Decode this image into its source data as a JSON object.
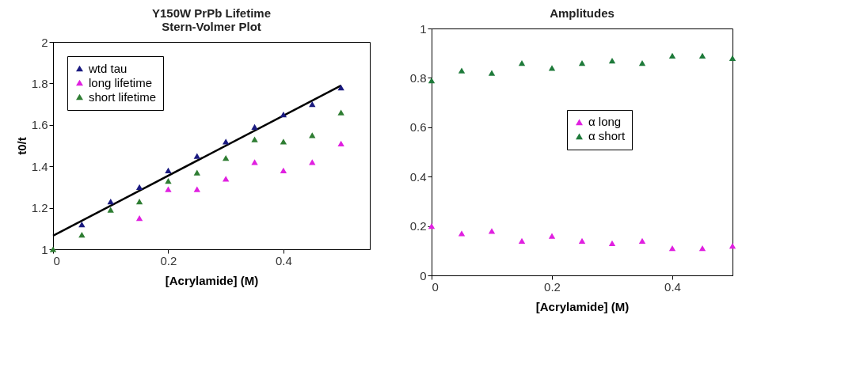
{
  "chart_data": [
    {
      "type": "scatter",
      "title": "Y150W PrPb Lifetime\nStern-Volmer Plot",
      "xlabel": "[Acrylamide] (M)",
      "ylabel": "t0/t",
      "x": [
        0,
        0.05,
        0.1,
        0.15,
        0.2,
        0.25,
        0.3,
        0.35,
        0.4,
        0.45,
        0.5
      ],
      "xlim": [
        0,
        0.55
      ],
      "xticks": [
        0,
        0.2,
        0.4
      ],
      "ylim": [
        1,
        2
      ],
      "yticks": [
        1,
        1.2,
        1.4,
        1.6,
        1.8,
        2
      ],
      "grid": false,
      "legend": "top left",
      "marker": "triangle",
      "series": [
        {
          "name": "wtd tau",
          "color": "#1a1a80",
          "values": [
            null,
            1.12,
            1.23,
            1.3,
            1.38,
            1.45,
            1.52,
            1.59,
            1.65,
            1.7,
            1.78
          ]
        },
        {
          "name": "long lifetime",
          "color": "#e020e0",
          "values": [
            null,
            null,
            null,
            1.15,
            1.29,
            1.29,
            1.34,
            1.42,
            1.38,
            1.42,
            1.51
          ]
        },
        {
          "name": "short lifetime",
          "color": "#2e7d32",
          "values": [
            1,
            1.07,
            1.19,
            1.23,
            1.33,
            1.37,
            1.44,
            1.53,
            1.52,
            1.55,
            1.66
          ]
        },
        {
          "type": "line",
          "color": "#000000",
          "marker": "none",
          "x": [
            0,
            0.5
          ],
          "values": [
            1.065,
            1.79
          ]
        }
      ]
    },
    {
      "type": "scatter",
      "title": "Amplitudes",
      "xlabel": "[Acrylamide] (M)",
      "x": [
        0,
        0.05,
        0.1,
        0.15,
        0.2,
        0.25,
        0.3,
        0.35,
        0.4,
        0.45,
        0.5
      ],
      "xlim": [
        0,
        0.5
      ],
      "xticks": [
        0,
        0.2,
        0.4
      ],
      "ylim": [
        0,
        1
      ],
      "yticks": [
        0,
        0.2,
        0.4,
        0.6,
        0.8,
        1
      ],
      "grid": false,
      "legend": "right",
      "marker": "triangle",
      "series": [
        {
          "name": "α long",
          "color": "#e020e0",
          "values": [
            0.2,
            0.17,
            0.18,
            0.14,
            0.16,
            0.14,
            0.13,
            0.14,
            0.11,
            0.11,
            0.12
          ]
        },
        {
          "name": "α short",
          "color": "#1e7a3a",
          "values": [
            0.79,
            0.83,
            0.82,
            0.86,
            0.84,
            0.86,
            0.87,
            0.86,
            0.89,
            0.89,
            0.88
          ]
        }
      ]
    }
  ]
}
